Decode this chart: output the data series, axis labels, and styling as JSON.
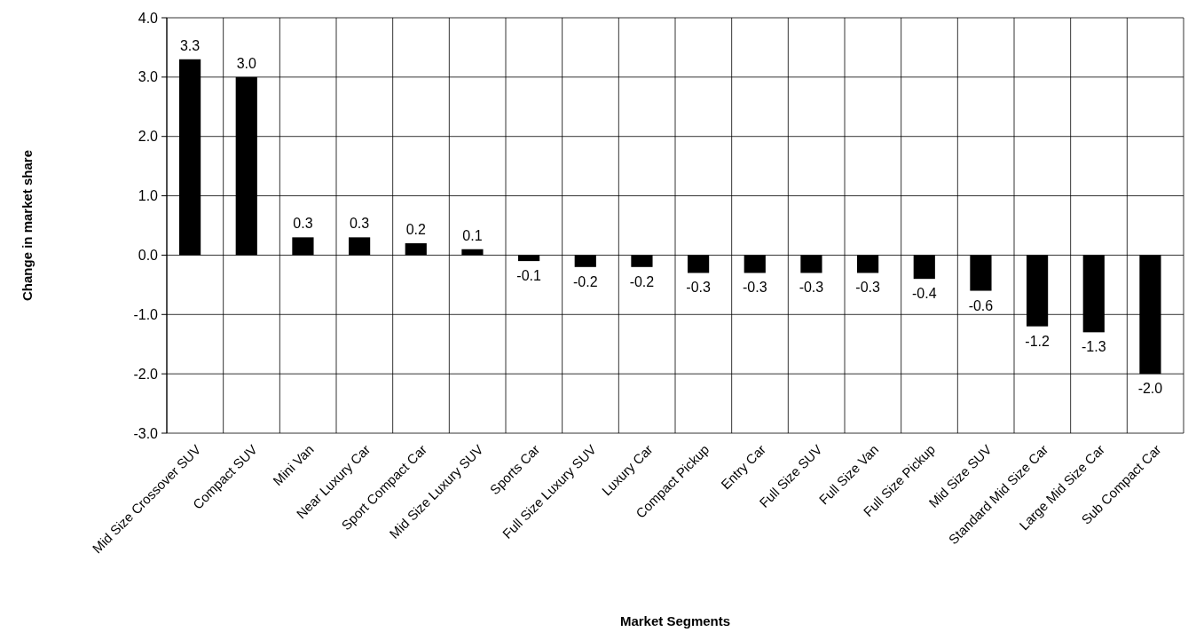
{
  "chart_data": {
    "type": "bar",
    "xlabel": "Market Segments",
    "ylabel": "Change in market share",
    "categories": [
      "Mid Size Crossover SUV",
      "Compact SUV",
      "Mini Van",
      "Near Luxury Car",
      "Sport Compact Car",
      "Mid Size Luxury SUV",
      "Sports Car",
      "Full Size Luxury SUV",
      "Luxury Car",
      "Compact Pickup",
      "Entry Car",
      "Full Size SUV",
      "Full Size Van",
      "Full Size Pickup",
      "Mid Size SUV",
      "Standard Mid Size Car",
      "Large Mid Size Car",
      "Sub Compact Car"
    ],
    "values": [
      3.3,
      3.0,
      0.3,
      0.3,
      0.2,
      0.1,
      -0.1,
      -0.2,
      -0.2,
      -0.3,
      -0.3,
      -0.3,
      -0.3,
      -0.4,
      -0.6,
      -1.2,
      -1.3,
      -2.0
    ],
    "value_labels": [
      "3.3",
      "3.0",
      "0.3",
      "0.3",
      "0.2",
      "0.1",
      "-0.1",
      "-0.2",
      "-0.2",
      "-0.3",
      "-0.3",
      "-0.3",
      "-0.3",
      "-0.4",
      "-0.6",
      "-1.2",
      "-1.3",
      "-2.0"
    ],
    "color": "#000000",
    "ylim": [
      -3,
      4
    ],
    "yticks": [
      {
        "value": -3,
        "label": "-3.0"
      },
      {
        "value": -2,
        "label": "-2.0"
      },
      {
        "value": -1,
        "label": "-1.0"
      },
      {
        "value": 0,
        "label": "0.0"
      },
      {
        "value": 1,
        "label": "1.0"
      },
      {
        "value": 2,
        "label": "2.0"
      },
      {
        "value": 3,
        "label": "3.0"
      },
      {
        "value": 4,
        "label": "4.0"
      }
    ],
    "grid": true
  }
}
